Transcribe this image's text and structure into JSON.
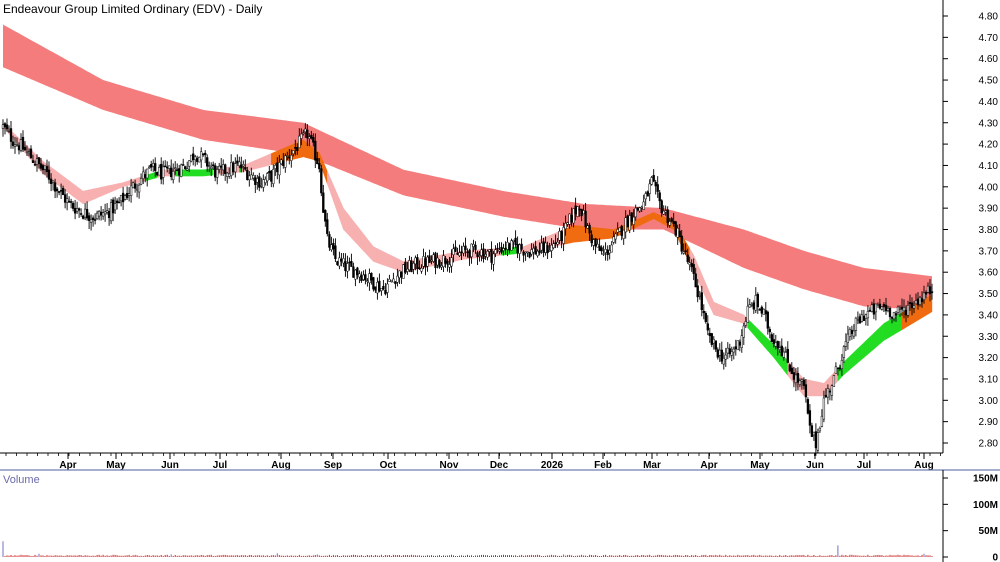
{
  "window": {
    "title": "Endeavour Group Limited Ordinary (EDV) - Daily"
  },
  "colors": {
    "long_band": "#f57c7c",
    "short_band_bear": "#f7b0b0",
    "short_band_bull": "#22dd22",
    "transition": "#f06a10",
    "candle": "#000000",
    "volume": "#cc2222",
    "volume_label": "#6a6aa8",
    "axis_line": "#7080b0"
  },
  "chart_data": [
    {
      "type": "candlestick",
      "title": "Endeavour Group Limited Ordinary (EDV) - Daily",
      "x_tick_labels": [
        "Apr",
        "May",
        "Jun",
        "Jul",
        "Aug",
        "Sep",
        "Oct",
        "Nov",
        "Dec",
        "2026",
        "Feb",
        "Mar",
        "Apr",
        "May",
        "Jun",
        "Jul",
        "Aug"
      ],
      "y_tick_labels": [
        "4.80",
        "4.70",
        "4.60",
        "4.50",
        "4.40",
        "4.30",
        "4.20",
        "4.10",
        "4.00",
        "3.90",
        "3.80",
        "3.70",
        "3.60",
        "3.50",
        "3.40",
        "3.30",
        "3.20",
        "3.10",
        "3.00",
        "2.90",
        "2.80"
      ],
      "ylim": [
        2.72,
        4.85
      ],
      "grid": false,
      "close_path": [
        [
          0,
          4.28
        ],
        [
          5,
          4.22
        ],
        [
          10,
          4.18
        ],
        [
          16,
          4.12
        ],
        [
          23,
          4.05
        ],
        [
          28,
          3.98
        ],
        [
          33,
          3.92
        ],
        [
          40,
          3.88
        ],
        [
          46,
          3.86
        ],
        [
          52,
          3.88
        ],
        [
          58,
          3.92
        ],
        [
          63,
          3.98
        ],
        [
          69,
          4.04
        ],
        [
          74,
          4.08
        ],
        [
          80,
          4.06
        ],
        [
          86,
          4.08
        ],
        [
          91,
          4.1
        ],
        [
          96,
          4.16
        ],
        [
          101,
          4.12
        ],
        [
          107,
          4.06
        ],
        [
          112,
          4.08
        ],
        [
          118,
          4.1
        ],
        [
          123,
          4.06
        ],
        [
          129,
          4.02
        ],
        [
          134,
          4.05
        ],
        [
          140,
          4.12
        ],
        [
          146,
          4.18
        ],
        [
          152,
          4.25
        ],
        [
          158,
          4.1
        ],
        [
          160,
          3.9
        ],
        [
          162,
          3.75
        ],
        [
          166,
          3.66
        ],
        [
          172,
          3.62
        ],
        [
          178,
          3.6
        ],
        [
          184,
          3.56
        ],
        [
          190,
          3.52
        ],
        [
          196,
          3.58
        ],
        [
          202,
          3.62
        ],
        [
          208,
          3.64
        ],
        [
          214,
          3.65
        ],
        [
          220,
          3.66
        ],
        [
          226,
          3.68
        ],
        [
          232,
          3.7
        ],
        [
          238,
          3.7
        ],
        [
          244,
          3.68
        ],
        [
          250,
          3.72
        ],
        [
          256,
          3.72
        ],
        [
          262,
          3.7
        ],
        [
          268,
          3.7
        ],
        [
          274,
          3.72
        ],
        [
          280,
          3.78
        ],
        [
          284,
          3.86
        ],
        [
          288,
          3.92
        ],
        [
          292,
          3.8
        ],
        [
          296,
          3.72
        ],
        [
          300,
          3.68
        ],
        [
          305,
          3.74
        ],
        [
          310,
          3.82
        ],
        [
          315,
          3.88
        ],
        [
          320,
          3.92
        ],
        [
          324,
          4.02
        ],
        [
          328,
          3.92
        ],
        [
          332,
          3.86
        ],
        [
          336,
          3.8
        ],
        [
          340,
          3.7
        ],
        [
          344,
          3.6
        ],
        [
          348,
          3.48
        ],
        [
          352,
          3.3
        ],
        [
          356,
          3.24
        ],
        [
          360,
          3.2
        ],
        [
          364,
          3.22
        ],
        [
          368,
          3.28
        ],
        [
          372,
          3.42
        ],
        [
          376,
          3.46
        ],
        [
          380,
          3.4
        ],
        [
          384,
          3.3
        ],
        [
          388,
          3.26
        ],
        [
          392,
          3.18
        ],
        [
          396,
          3.1
        ],
        [
          400,
          3.06
        ],
        [
          403,
          2.86
        ],
        [
          406,
          2.8
        ],
        [
          410,
          3.0
        ],
        [
          415,
          3.1
        ],
        [
          420,
          3.24
        ],
        [
          425,
          3.34
        ],
        [
          430,
          3.4
        ],
        [
          435,
          3.42
        ],
        [
          440,
          3.44
        ],
        [
          446,
          3.4
        ],
        [
          452,
          3.44
        ],
        [
          458,
          3.48
        ],
        [
          464,
          3.52
        ]
      ],
      "series": [
        {
          "name": "",
          "band": "long",
          "upper": [
            [
              0,
              4.76
            ],
            [
              50,
              4.5
            ],
            [
              100,
              4.36
            ],
            [
              150,
              4.3
            ],
            [
              200,
              4.08
            ],
            [
              250,
              3.98
            ],
            [
              290,
              3.92
            ],
            [
              330,
              3.9
            ],
            [
              370,
              3.8
            ],
            [
              400,
              3.7
            ],
            [
              430,
              3.62
            ],
            [
              465,
              3.58
            ]
          ],
          "lower": [
            [
              0,
              4.56
            ],
            [
              50,
              4.36
            ],
            [
              100,
              4.22
            ],
            [
              150,
              4.15
            ],
            [
              200,
              3.96
            ],
            [
              250,
              3.86
            ],
            [
              290,
              3.8
            ],
            [
              330,
              3.8
            ],
            [
              370,
              3.62
            ],
            [
              400,
              3.52
            ],
            [
              430,
              3.44
            ],
            [
              465,
              3.42
            ]
          ]
        },
        {
          "name": "",
          "band": "short",
          "upper": [
            [
              0,
              4.3
            ],
            [
              20,
              4.12
            ],
            [
              40,
              3.98
            ],
            [
              60,
              4.02
            ],
            [
              80,
              4.08
            ],
            [
              100,
              4.08
            ],
            [
              120,
              4.1
            ],
            [
              150,
              4.22
            ],
            [
              158,
              4.16
            ],
            [
              170,
              3.9
            ],
            [
              185,
              3.72
            ],
            [
              200,
              3.65
            ],
            [
              230,
              3.7
            ],
            [
              260,
              3.72
            ],
            [
              285,
              3.82
            ],
            [
              305,
              3.8
            ],
            [
              325,
              3.88
            ],
            [
              335,
              3.84
            ],
            [
              345,
              3.68
            ],
            [
              355,
              3.46
            ],
            [
              370,
              3.4
            ],
            [
              385,
              3.26
            ],
            [
              400,
              3.1
            ],
            [
              410,
              3.08
            ],
            [
              420,
              3.18
            ],
            [
              440,
              3.36
            ],
            [
              465,
              3.5
            ]
          ],
          "lower": [
            [
              0,
              4.28
            ],
            [
              20,
              4.06
            ],
            [
              40,
              3.92
            ],
            [
              60,
              4.0
            ],
            [
              80,
              4.05
            ],
            [
              100,
              4.05
            ],
            [
              120,
              4.07
            ],
            [
              150,
              4.14
            ],
            [
              158,
              4.12
            ],
            [
              170,
              3.8
            ],
            [
              185,
              3.65
            ],
            [
              200,
              3.6
            ],
            [
              230,
              3.66
            ],
            [
              260,
              3.69
            ],
            [
              285,
              3.74
            ],
            [
              305,
              3.76
            ],
            [
              325,
              3.85
            ],
            [
              335,
              3.8
            ],
            [
              345,
              3.6
            ],
            [
              355,
              3.4
            ],
            [
              370,
              3.36
            ],
            [
              385,
              3.2
            ],
            [
              400,
              3.02
            ],
            [
              410,
              3.02
            ],
            [
              420,
              3.12
            ],
            [
              440,
              3.28
            ],
            [
              465,
              3.42
            ]
          ]
        }
      ]
    },
    {
      "type": "bar",
      "title": "Volume",
      "y_tick_labels": [
        "150M",
        "100M",
        "50M",
        "0"
      ],
      "ylim": [
        0,
        150
      ],
      "values_description_unit": "millions",
      "typical_value": 3,
      "spikes": [
        [
          0,
          30
        ],
        [
          18,
          6
        ],
        [
          84,
          5
        ],
        [
          137,
          7
        ],
        [
          157,
          5
        ],
        [
          280,
          5
        ],
        [
          417,
          22
        ],
        [
          460,
          6
        ]
      ]
    }
  ]
}
